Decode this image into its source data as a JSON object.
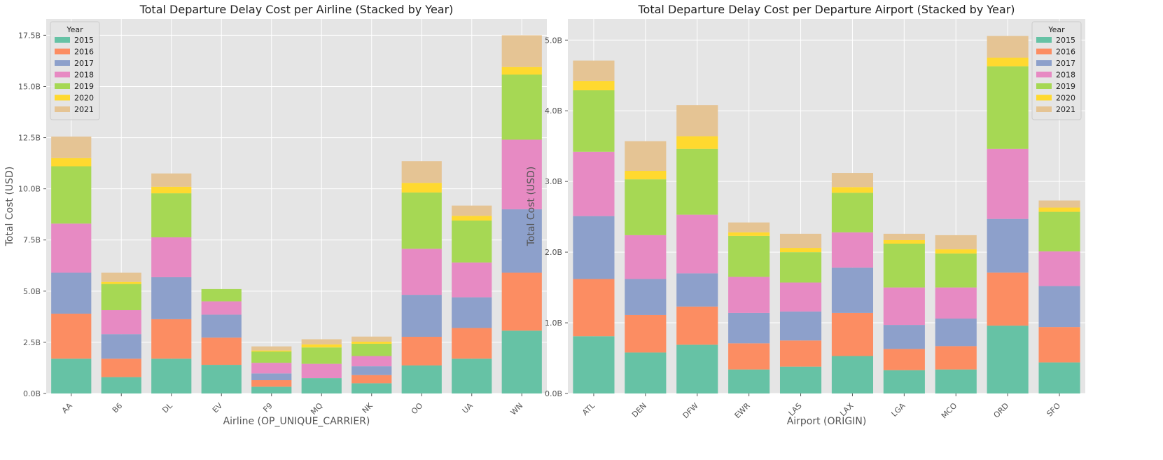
{
  "chart_data": [
    {
      "type": "bar",
      "stacked": true,
      "title": "Total Departure Delay Cost per Airline (Stacked by Year)",
      "xlabel": "Airline (OP_UNIQUE_CARRIER)",
      "ylabel": "Total Cost (USD)",
      "ylim": [
        0,
        18.3
      ],
      "yticks": [
        "0.0B",
        "2.5B",
        "5.0B",
        "7.5B",
        "10.0B",
        "12.5B",
        "15.0B",
        "17.5B"
      ],
      "ytick_values": [
        0,
        2.5,
        5,
        7.5,
        10,
        12.5,
        15,
        17.5
      ],
      "legend_title": "Year",
      "legend_position": "top-left",
      "grid": true,
      "categories": [
        "AA",
        "B6",
        "DL",
        "EV",
        "F9",
        "MQ",
        "NK",
        "OO",
        "UA",
        "WN"
      ],
      "series": [
        {
          "name": "2015",
          "color": "#66c2a5",
          "values": [
            1.7,
            0.8,
            1.7,
            1.4,
            0.33,
            0.75,
            0.5,
            1.37,
            1.7,
            3.07
          ]
        },
        {
          "name": "2016",
          "color": "#fc8d62",
          "values": [
            2.2,
            0.9,
            1.93,
            1.33,
            0.32,
            0.0,
            0.4,
            1.4,
            1.5,
            2.83
          ]
        },
        {
          "name": "2017",
          "color": "#8da0cb",
          "values": [
            2.0,
            1.2,
            2.05,
            1.12,
            0.33,
            0.0,
            0.43,
            2.05,
            1.5,
            3.1
          ]
        },
        {
          "name": "2018",
          "color": "#e78ac3",
          "values": [
            2.4,
            1.17,
            1.95,
            0.65,
            0.52,
            0.7,
            0.5,
            2.25,
            1.7,
            3.4
          ]
        },
        {
          "name": "2019",
          "color": "#a6d854",
          "values": [
            2.8,
            1.28,
            2.15,
            0.6,
            0.55,
            0.8,
            0.6,
            2.75,
            2.05,
            3.18
          ]
        },
        {
          "name": "2020",
          "color": "#ffd92f",
          "values": [
            0.4,
            0.1,
            0.32,
            0.0,
            0.05,
            0.15,
            0.1,
            0.47,
            0.23,
            0.37
          ]
        },
        {
          "name": "2021",
          "color": "#e5c494",
          "values": [
            1.05,
            0.45,
            0.65,
            0.0,
            0.2,
            0.25,
            0.25,
            1.06,
            0.5,
            1.55
          ]
        }
      ]
    },
    {
      "type": "bar",
      "stacked": true,
      "title": "Total Departure Delay Cost per Departure Airport (Stacked by Year)",
      "xlabel": "Airport (ORIGIN)",
      "ylabel": "Total Cost (USD)",
      "ylim": [
        0,
        5.3
      ],
      "yticks": [
        "0.0B",
        "1.0B",
        "2.0B",
        "3.0B",
        "4.0B",
        "5.0B"
      ],
      "ytick_values": [
        0,
        1,
        2,
        3,
        4,
        5
      ],
      "legend_title": "Year",
      "legend_position": "top-right",
      "grid": true,
      "categories": [
        "ATL",
        "DEN",
        "DFW",
        "EWR",
        "LAS",
        "LAX",
        "LGA",
        "MCO",
        "ORD",
        "SFO"
      ],
      "series": [
        {
          "name": "2015",
          "color": "#66c2a5",
          "values": [
            0.81,
            0.58,
            0.69,
            0.34,
            0.38,
            0.53,
            0.33,
            0.34,
            0.96,
            0.44
          ]
        },
        {
          "name": "2016",
          "color": "#fc8d62",
          "values": [
            0.81,
            0.53,
            0.54,
            0.37,
            0.37,
            0.61,
            0.3,
            0.33,
            0.75,
            0.5
          ]
        },
        {
          "name": "2017",
          "color": "#8da0cb",
          "values": [
            0.89,
            0.51,
            0.47,
            0.43,
            0.41,
            0.64,
            0.34,
            0.39,
            0.76,
            0.58
          ]
        },
        {
          "name": "2018",
          "color": "#e78ac3",
          "values": [
            0.91,
            0.62,
            0.83,
            0.51,
            0.41,
            0.5,
            0.53,
            0.44,
            0.99,
            0.49
          ]
        },
        {
          "name": "2019",
          "color": "#a6d854",
          "values": [
            0.87,
            0.79,
            0.93,
            0.58,
            0.43,
            0.56,
            0.62,
            0.48,
            1.17,
            0.56
          ]
        },
        {
          "name": "2020",
          "color": "#ffd92f",
          "values": [
            0.13,
            0.12,
            0.18,
            0.05,
            0.06,
            0.08,
            0.05,
            0.06,
            0.12,
            0.06
          ]
        },
        {
          "name": "2021",
          "color": "#e5c494",
          "values": [
            0.29,
            0.42,
            0.44,
            0.14,
            0.2,
            0.2,
            0.09,
            0.2,
            0.31,
            0.1
          ]
        }
      ]
    }
  ]
}
